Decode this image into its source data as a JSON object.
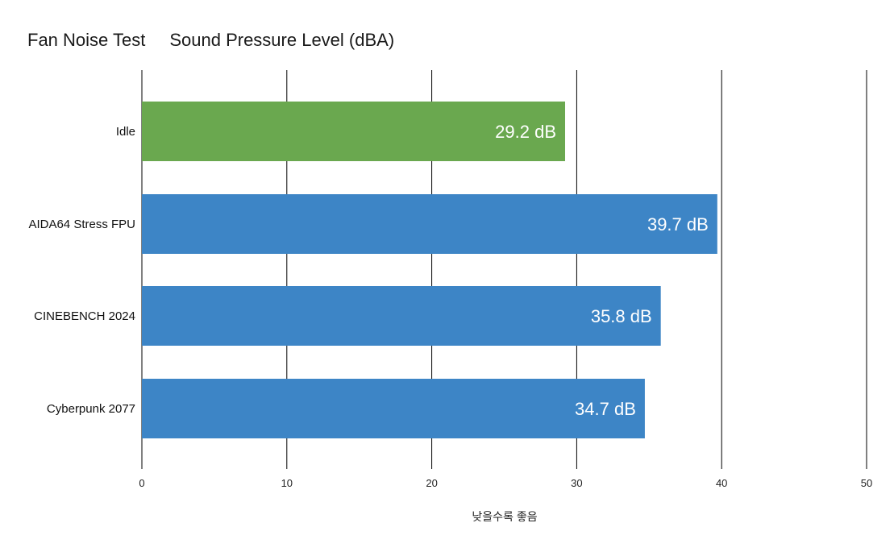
{
  "chart_data": {
    "type": "bar",
    "orientation": "horizontal",
    "title": "Fan Noise Test",
    "subtitle": "Sound Pressure Level (dBA)",
    "xlabel": "낮을수록 좋음",
    "ylabel": "",
    "xlim": [
      0,
      50
    ],
    "x_ticks": [
      "0",
      "10",
      "20",
      "30",
      "40",
      "50"
    ],
    "grid": true,
    "categories": [
      "Idle",
      "AIDA64 Stress FPU",
      "CINEBENCH 2024",
      "Cyberpunk 2077"
    ],
    "values": [
      29.2,
      39.7,
      35.8,
      34.7
    ],
    "data_labels": [
      "29.2 dB",
      "39.7 dB",
      "35.8 dB",
      "34.7 dB"
    ],
    "bar_colors": [
      "#6aa84f",
      "#3d85c6",
      "#3d85c6",
      "#3d85c6"
    ],
    "grid_color": "#000000"
  }
}
